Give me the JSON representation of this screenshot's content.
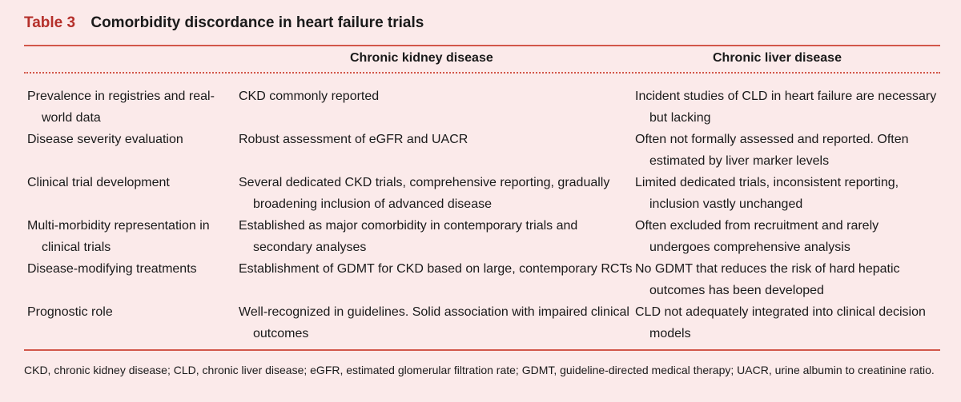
{
  "table": {
    "label": "Table 3",
    "title": "Comorbidity discordance in heart failure trials",
    "columns": [
      "",
      "Chronic kidney disease",
      "Chronic liver disease"
    ],
    "rows": [
      {
        "feature": "Prevalence in registries and real-world data",
        "ckd": "CKD commonly reported",
        "cld": "Incident studies of CLD in heart failure are necessary but lacking"
      },
      {
        "feature": "Disease severity evaluation",
        "ckd": "Robust assessment of eGFR and UACR",
        "cld": "Often not formally assessed and reported. Often estimated by liver marker levels"
      },
      {
        "feature": "Clinical trial development",
        "ckd": "Several dedicated CKD trials, comprehensive reporting, gradually broadening inclusion of advanced disease",
        "cld": "Limited dedicated trials, inconsistent reporting, inclusion vastly unchanged"
      },
      {
        "feature": "Multi-morbidity representation in clinical trials",
        "ckd": "Established as major comorbidity in contemporary trials and secondary analyses",
        "cld": "Often excluded from recruitment and rarely undergoes comprehensive analysis"
      },
      {
        "feature": "Disease-modifying treatments",
        "ckd": "Establishment of GDMT for CKD based on large, contemporary RCTs",
        "cld": "No GDMT that reduces the risk of hard hepatic outcomes has been developed"
      },
      {
        "feature": "Prognostic role",
        "ckd": "Well-recognized in guidelines. Solid association with impaired clinical outcomes",
        "cld": "CLD not adequately integrated into clinical decision models"
      }
    ],
    "footnote": "CKD, chronic kidney disease; CLD, chronic liver disease; eGFR, estimated glomerular filtration rate; GDMT, guideline-directed medical therapy; UACR, urine albumin to creatinine ratio."
  }
}
